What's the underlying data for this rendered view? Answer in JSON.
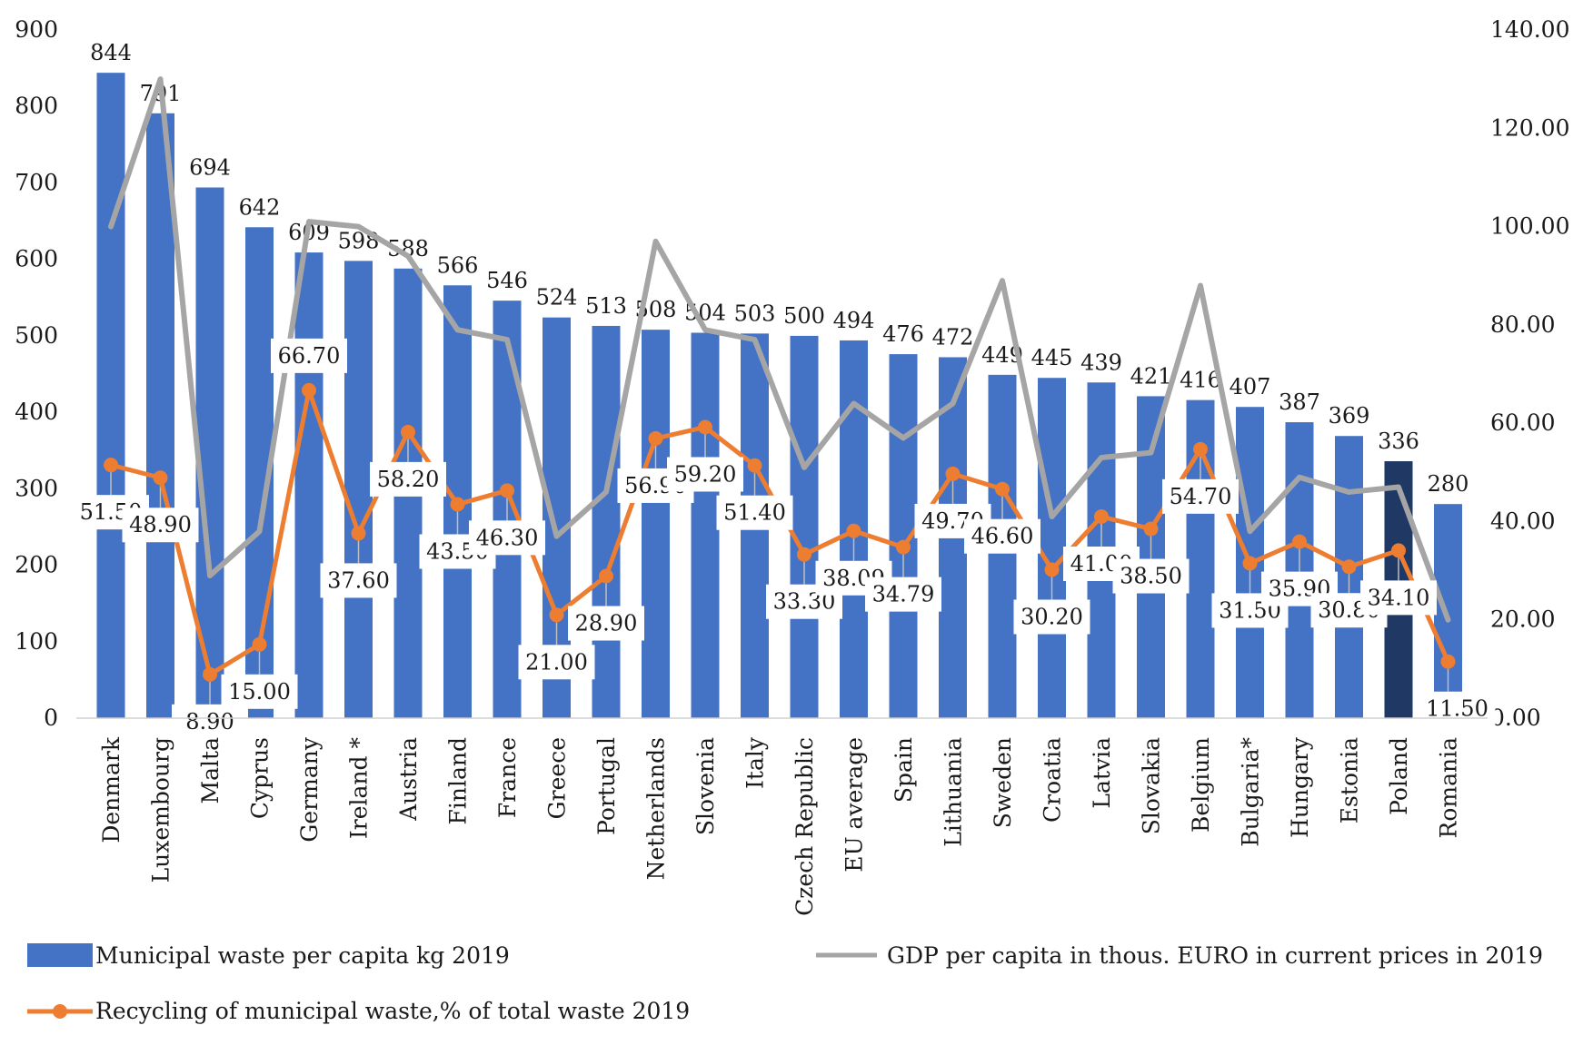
{
  "chart_data": {
    "type": "bar",
    "title": "",
    "xlabel": "",
    "ylabel": "",
    "ylim": [
      0,
      900
    ],
    "y2lim": [
      0,
      140
    ],
    "y_ticks": [
      "0",
      "100",
      "200",
      "300",
      "400",
      "500",
      "600",
      "700",
      "800",
      "900"
    ],
    "y2_ticks": [
      "0.00",
      "20.00",
      "40.00",
      "60.00",
      "80.00",
      "100.00",
      "120.00",
      "140.00"
    ],
    "categories": [
      "Denmark",
      "Luxembourg",
      "Malta",
      "Cyprus",
      "Germany",
      "Ireland *",
      "Austria",
      "Finland",
      "France",
      "Greece",
      "Portugal",
      "Netherlands",
      "Slovenia",
      "Italy",
      "Czech Republic",
      "EU average",
      "Spain",
      "Lithuania",
      "Sweden",
      "Croatia",
      "Latvia",
      "Slovakia",
      "Belgium",
      "Bulgaria*",
      "Hungary",
      "Estonia",
      "Poland",
      "Romania"
    ],
    "highlight_category": "Poland",
    "series": [
      {
        "name": "Municipal waste per capita kg 2019",
        "kind": "bar",
        "axis": "left",
        "color": "#4472c4",
        "highlight_color": "#203864",
        "values": [
          844,
          791,
          694,
          642,
          609,
          598,
          588,
          566,
          546,
          524,
          513,
          508,
          504,
          503,
          500,
          494,
          476,
          472,
          449,
          445,
          439,
          421,
          416,
          407,
          387,
          369,
          336,
          280
        ],
        "labels": [
          "844",
          "791",
          "694",
          "642",
          "609",
          "598",
          "588",
          "566",
          "546",
          "524",
          "513",
          "508",
          "504",
          "503",
          "500",
          "494",
          "476",
          "472",
          "449",
          "445",
          "439",
          "421",
          "416",
          "407",
          "387",
          "369",
          "336",
          "280"
        ]
      },
      {
        "name": "GDP per capita in thous. EURO in current prices in 2019",
        "kind": "line",
        "axis": "right",
        "color": "#a5a5a5",
        "values": [
          100,
          130,
          29,
          38,
          101,
          100,
          94,
          79,
          77,
          37,
          46,
          97,
          79,
          77,
          51,
          64,
          57,
          64,
          89,
          41,
          53,
          54,
          88,
          38,
          49,
          46,
          47,
          20
        ]
      },
      {
        "name": "Recycling of municipal waste,% of total waste 2019",
        "kind": "line",
        "axis": "right",
        "color": "#ed7d31",
        "markers": true,
        "values": [
          51.5,
          48.9,
          8.9,
          15.0,
          66.7,
          37.6,
          58.2,
          43.5,
          46.3,
          21.0,
          28.9,
          56.9,
          59.2,
          51.4,
          33.3,
          38.09,
          34.79,
          49.7,
          46.6,
          30.2,
          41.0,
          38.5,
          54.7,
          31.5,
          35.9,
          30.8,
          34.1,
          11.5
        ],
        "labels": [
          "51.50",
          "48.90",
          "8.90",
          "15.00",
          "66.70",
          "37.60",
          "58.20",
          "43.50",
          "46.30",
          "21.00",
          "28.90",
          "56.90",
          "59.20",
          "51.40",
          "33.30",
          "38.09",
          "34.79",
          "49.70",
          "46.60",
          "30.20",
          "41.00",
          "38.50",
          "54.70",
          "31.50",
          "35.90",
          "30.80",
          "34.10",
          "11.50"
        ]
      }
    ]
  }
}
